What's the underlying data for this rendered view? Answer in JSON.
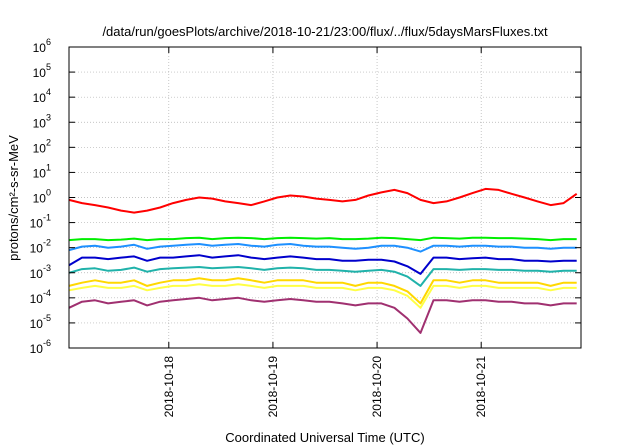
{
  "chart_data": {
    "type": "line",
    "title": "/data/run/goesPlots/archive/2018-10-21/23:00/flux/../flux/5daysMarsFluxes.txt",
    "xlabel": "Coordinated Universal Time (UTC)",
    "ylabel": "protons/cm²-s-sr-MeV",
    "y_scale": "log",
    "ylim": [
      1e-06,
      1000000.0
    ],
    "y_tick_labels": [
      {
        "base": "10",
        "exp": "-6"
      },
      {
        "base": "10",
        "exp": "-5"
      },
      {
        "base": "10",
        "exp": "-4"
      },
      {
        "base": "10",
        "exp": "-3"
      },
      {
        "base": "10",
        "exp": "-2"
      },
      {
        "base": "10",
        "exp": "-1"
      },
      {
        "base": "10",
        "exp": "0"
      },
      {
        "base": "10",
        "exp": "1"
      },
      {
        "base": "10",
        "exp": "2"
      },
      {
        "base": "10",
        "exp": "3"
      },
      {
        "base": "10",
        "exp": "4"
      },
      {
        "base": "10",
        "exp": "5"
      },
      {
        "base": "10",
        "exp": "6"
      }
    ],
    "xlim": [
      "2018-10-17 01:00",
      "2018-10-21 23:00"
    ],
    "x_ticks": [
      "2018-10-18",
      "2018-10-19",
      "2018-10-20",
      "2018-10-21"
    ],
    "grid": true,
    "x": [
      "2018-10-17 01:00",
      "2018-10-17 04:00",
      "2018-10-17 07:00",
      "2018-10-17 10:00",
      "2018-10-17 13:00",
      "2018-10-17 16:00",
      "2018-10-17 19:00",
      "2018-10-17 22:00",
      "2018-10-18 01:00",
      "2018-10-18 04:00",
      "2018-10-18 07:00",
      "2018-10-18 10:00",
      "2018-10-18 13:00",
      "2018-10-18 16:00",
      "2018-10-18 19:00",
      "2018-10-18 22:00",
      "2018-10-19 01:00",
      "2018-10-19 04:00",
      "2018-10-19 07:00",
      "2018-10-19 10:00",
      "2018-10-19 13:00",
      "2018-10-19 16:00",
      "2018-10-19 19:00",
      "2018-10-19 22:00",
      "2018-10-20 01:00",
      "2018-10-20 04:00",
      "2018-10-20 07:00",
      "2018-10-20 10:00",
      "2018-10-20 13:00",
      "2018-10-20 16:00",
      "2018-10-20 19:00",
      "2018-10-20 22:00",
      "2018-10-21 01:00",
      "2018-10-21 04:00",
      "2018-10-21 07:00",
      "2018-10-21 10:00",
      "2018-10-21 13:00",
      "2018-10-21 16:00",
      "2018-10-21 19:00",
      "2018-10-21 22:00"
    ],
    "series": [
      {
        "color": "#ff0000",
        "values": [
          0.8,
          0.6,
          0.5,
          0.4,
          0.3,
          0.25,
          0.3,
          0.4,
          0.6,
          0.8,
          1.0,
          0.9,
          0.7,
          0.6,
          0.5,
          0.7,
          1.0,
          1.2,
          1.1,
          0.9,
          0.8,
          0.7,
          0.8,
          1.2,
          1.6,
          2.0,
          1.5,
          0.8,
          0.6,
          0.7,
          1.0,
          1.5,
          2.2,
          2.0,
          1.4,
          1.0,
          0.7,
          0.5,
          0.6,
          1.4
        ]
      },
      {
        "color": "#00ee00",
        "values": [
          0.02,
          0.022,
          0.022,
          0.02,
          0.021,
          0.023,
          0.02,
          0.022,
          0.022,
          0.024,
          0.025,
          0.022,
          0.024,
          0.025,
          0.024,
          0.022,
          0.024,
          0.025,
          0.024,
          0.023,
          0.024,
          0.022,
          0.022,
          0.023,
          0.025,
          0.024,
          0.022,
          0.02,
          0.025,
          0.024,
          0.023,
          0.025,
          0.025,
          0.024,
          0.024,
          0.023,
          0.022,
          0.02,
          0.022,
          0.022
        ]
      },
      {
        "color": "#1e90ff",
        "values": [
          0.008,
          0.011,
          0.012,
          0.01,
          0.011,
          0.013,
          0.009,
          0.011,
          0.012,
          0.013,
          0.014,
          0.012,
          0.013,
          0.014,
          0.012,
          0.011,
          0.013,
          0.014,
          0.012,
          0.011,
          0.011,
          0.01,
          0.009,
          0.01,
          0.012,
          0.012,
          0.01,
          0.007,
          0.012,
          0.012,
          0.011,
          0.012,
          0.012,
          0.011,
          0.011,
          0.01,
          0.01,
          0.009,
          0.01,
          0.01
        ]
      },
      {
        "color": "#0000cc",
        "values": [
          0.002,
          0.004,
          0.004,
          0.0035,
          0.004,
          0.0045,
          0.003,
          0.004,
          0.004,
          0.0045,
          0.005,
          0.004,
          0.0045,
          0.005,
          0.004,
          0.0035,
          0.004,
          0.0045,
          0.004,
          0.0035,
          0.0035,
          0.003,
          0.003,
          0.0033,
          0.0033,
          0.0028,
          0.0018,
          0.0009,
          0.004,
          0.004,
          0.0035,
          0.0038,
          0.004,
          0.0035,
          0.0035,
          0.003,
          0.003,
          0.0028,
          0.003,
          0.003
        ]
      },
      {
        "color": "#20b2aa",
        "values": [
          0.001,
          0.0014,
          0.0015,
          0.0012,
          0.0013,
          0.0016,
          0.0011,
          0.0014,
          0.0015,
          0.0016,
          0.0017,
          0.0015,
          0.0016,
          0.0017,
          0.0015,
          0.0013,
          0.0015,
          0.0016,
          0.0015,
          0.0013,
          0.0013,
          0.0012,
          0.0011,
          0.0012,
          0.0013,
          0.0011,
          0.0007,
          0.0003,
          0.0014,
          0.0014,
          0.0013,
          0.0014,
          0.0014,
          0.0013,
          0.0013,
          0.0012,
          0.0012,
          0.0011,
          0.0012,
          0.0012
        ]
      },
      {
        "color": "#ffd700",
        "values": [
          0.0003,
          0.0004,
          0.0005,
          0.0004,
          0.0004,
          0.0005,
          0.0003,
          0.0004,
          0.0005,
          0.0005,
          0.0006,
          0.0005,
          0.0005,
          0.0006,
          0.0005,
          0.0004,
          0.0005,
          0.0005,
          0.0005,
          0.0004,
          0.0004,
          0.0004,
          0.0003,
          0.0004,
          0.0004,
          0.0003,
          0.00018,
          6e-05,
          0.0005,
          0.0005,
          0.0004,
          0.0005,
          0.0005,
          0.0004,
          0.0004,
          0.0004,
          0.0004,
          0.0003,
          0.0004,
          0.0004
        ]
      },
      {
        "color": "#ffff44",
        "values": [
          0.0002,
          0.00025,
          0.0003,
          0.00025,
          0.00025,
          0.0003,
          0.0002,
          0.00025,
          0.0003,
          0.0003,
          0.00035,
          0.0003,
          0.0003,
          0.00035,
          0.0003,
          0.00025,
          0.0003,
          0.0003,
          0.0003,
          0.00025,
          0.00025,
          0.00025,
          0.0002,
          0.00025,
          0.00025,
          0.0002,
          0.00012,
          4e-05,
          0.0003,
          0.0003,
          0.00025,
          0.0003,
          0.0003,
          0.00025,
          0.00025,
          0.00025,
          0.00025,
          0.0002,
          0.00025,
          0.00025
        ]
      },
      {
        "color": "#a03070",
        "values": [
          4e-05,
          7e-05,
          8e-05,
          6e-05,
          7e-05,
          8e-05,
          5e-05,
          7e-05,
          8e-05,
          9e-05,
          0.0001,
          8e-05,
          9e-05,
          0.0001,
          8e-05,
          7e-05,
          8e-05,
          9e-05,
          8e-05,
          7e-05,
          7e-05,
          6e-05,
          5e-05,
          6e-05,
          6e-05,
          4e-05,
          1.5e-05,
          4e-06,
          8e-05,
          8e-05,
          7e-05,
          8e-05,
          8e-05,
          7e-05,
          7e-05,
          6e-05,
          6e-05,
          5e-05,
          6e-05,
          6e-05
        ]
      }
    ]
  }
}
